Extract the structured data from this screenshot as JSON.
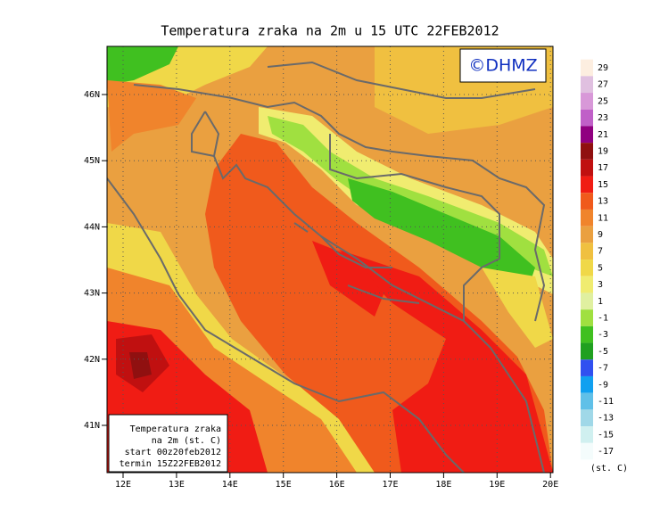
{
  "title": "Temperatura zraka na 2m u 15 UTC 22FEB2012",
  "logo": "©DHMZ",
  "lat_labels": [
    "46N",
    "45N",
    "44N",
    "43N",
    "42N",
    "41N"
  ],
  "lon_labels": [
    "12E",
    "13E",
    "14E",
    "15E",
    "16E",
    "17E",
    "18E",
    "19E",
    "20E"
  ],
  "colorbar": {
    "levels": [
      29,
      27,
      25,
      23,
      21,
      19,
      17,
      15,
      13,
      11,
      9,
      7,
      5,
      3,
      1,
      -1,
      -3,
      -5,
      -7,
      -9,
      -11,
      -13,
      -15,
      -17
    ],
    "colors": [
      "#fdeee0",
      "#e0c0e0",
      "#d898d8",
      "#c060c8",
      "#900080",
      "#901010",
      "#c01010",
      "#f01c14",
      "#f05a1c",
      "#f0842c",
      "#eaa040",
      "#f0c040",
      "#f0d848",
      "#f0ec70",
      "#e0f0a0",
      "#a0e040",
      "#40c020",
      "#20a020",
      "#3050f0",
      "#10a0f0",
      "#60c0e8",
      "#a0d8e8",
      "#d0f0f0",
      "#f4fcfc"
    ],
    "unit": "(st. C)"
  },
  "legend": [
    "Temperatura zraka",
    "na 2m (st. C)",
    "start 00z20feb2012",
    "termin 15Z22FEB2012"
  ]
}
